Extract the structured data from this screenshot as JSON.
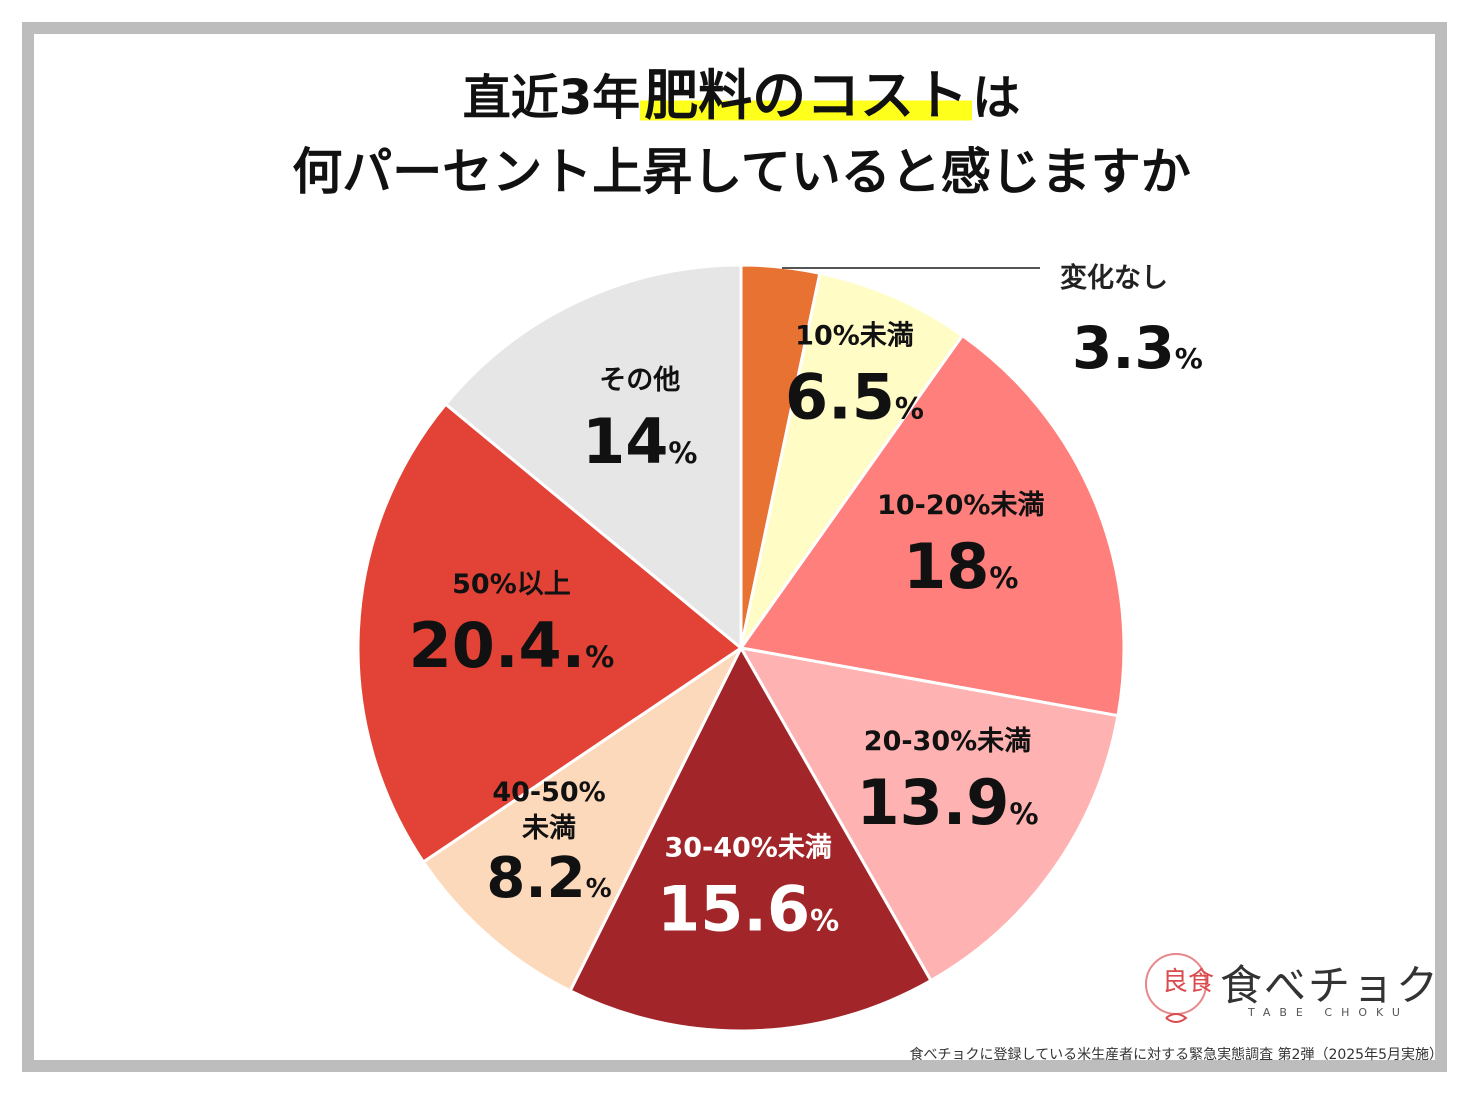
{
  "title": {
    "line1_pre": "直近3年",
    "line1_highlight": "肥料のコスト",
    "line1_post": "は",
    "line2": "何パーセント上昇していると感じますか"
  },
  "chart_data": {
    "type": "pie",
    "unit": "%",
    "slices": [
      {
        "label": "変化なし",
        "value": 3.3,
        "display": "3.3",
        "color": "#e87232"
      },
      {
        "label": "10%未満",
        "value": 6.5,
        "display": "6.5",
        "color": "#fffcc6"
      },
      {
        "label": "10-20%未満",
        "value": 18,
        "display": "18",
        "color": "#fe7f7c"
      },
      {
        "label": "20-30%未満",
        "value": 13.9,
        "display": "13.9",
        "color": "#feb2b2"
      },
      {
        "label": "30-40%未満",
        "value": 15.6,
        "display": "15.6",
        "color": "#a22629"
      },
      {
        "label": "40-50%未満",
        "value": 8.2,
        "display": "8.2",
        "color": "#fdd9bb"
      },
      {
        "label": "50%以上",
        "value": 20.4,
        "display": "20.4.",
        "color": "#e24336"
      },
      {
        "label": "その他",
        "value": 14,
        "display": "14",
        "color": "#e6e6e6"
      }
    ]
  },
  "logo": {
    "name": "食べチョク",
    "sub": "TABE CHOKU",
    "mark": "良食"
  },
  "source": "食べチョクに登録している米生産者に対する緊急実態調査 第2弾（2025年5月実施）"
}
